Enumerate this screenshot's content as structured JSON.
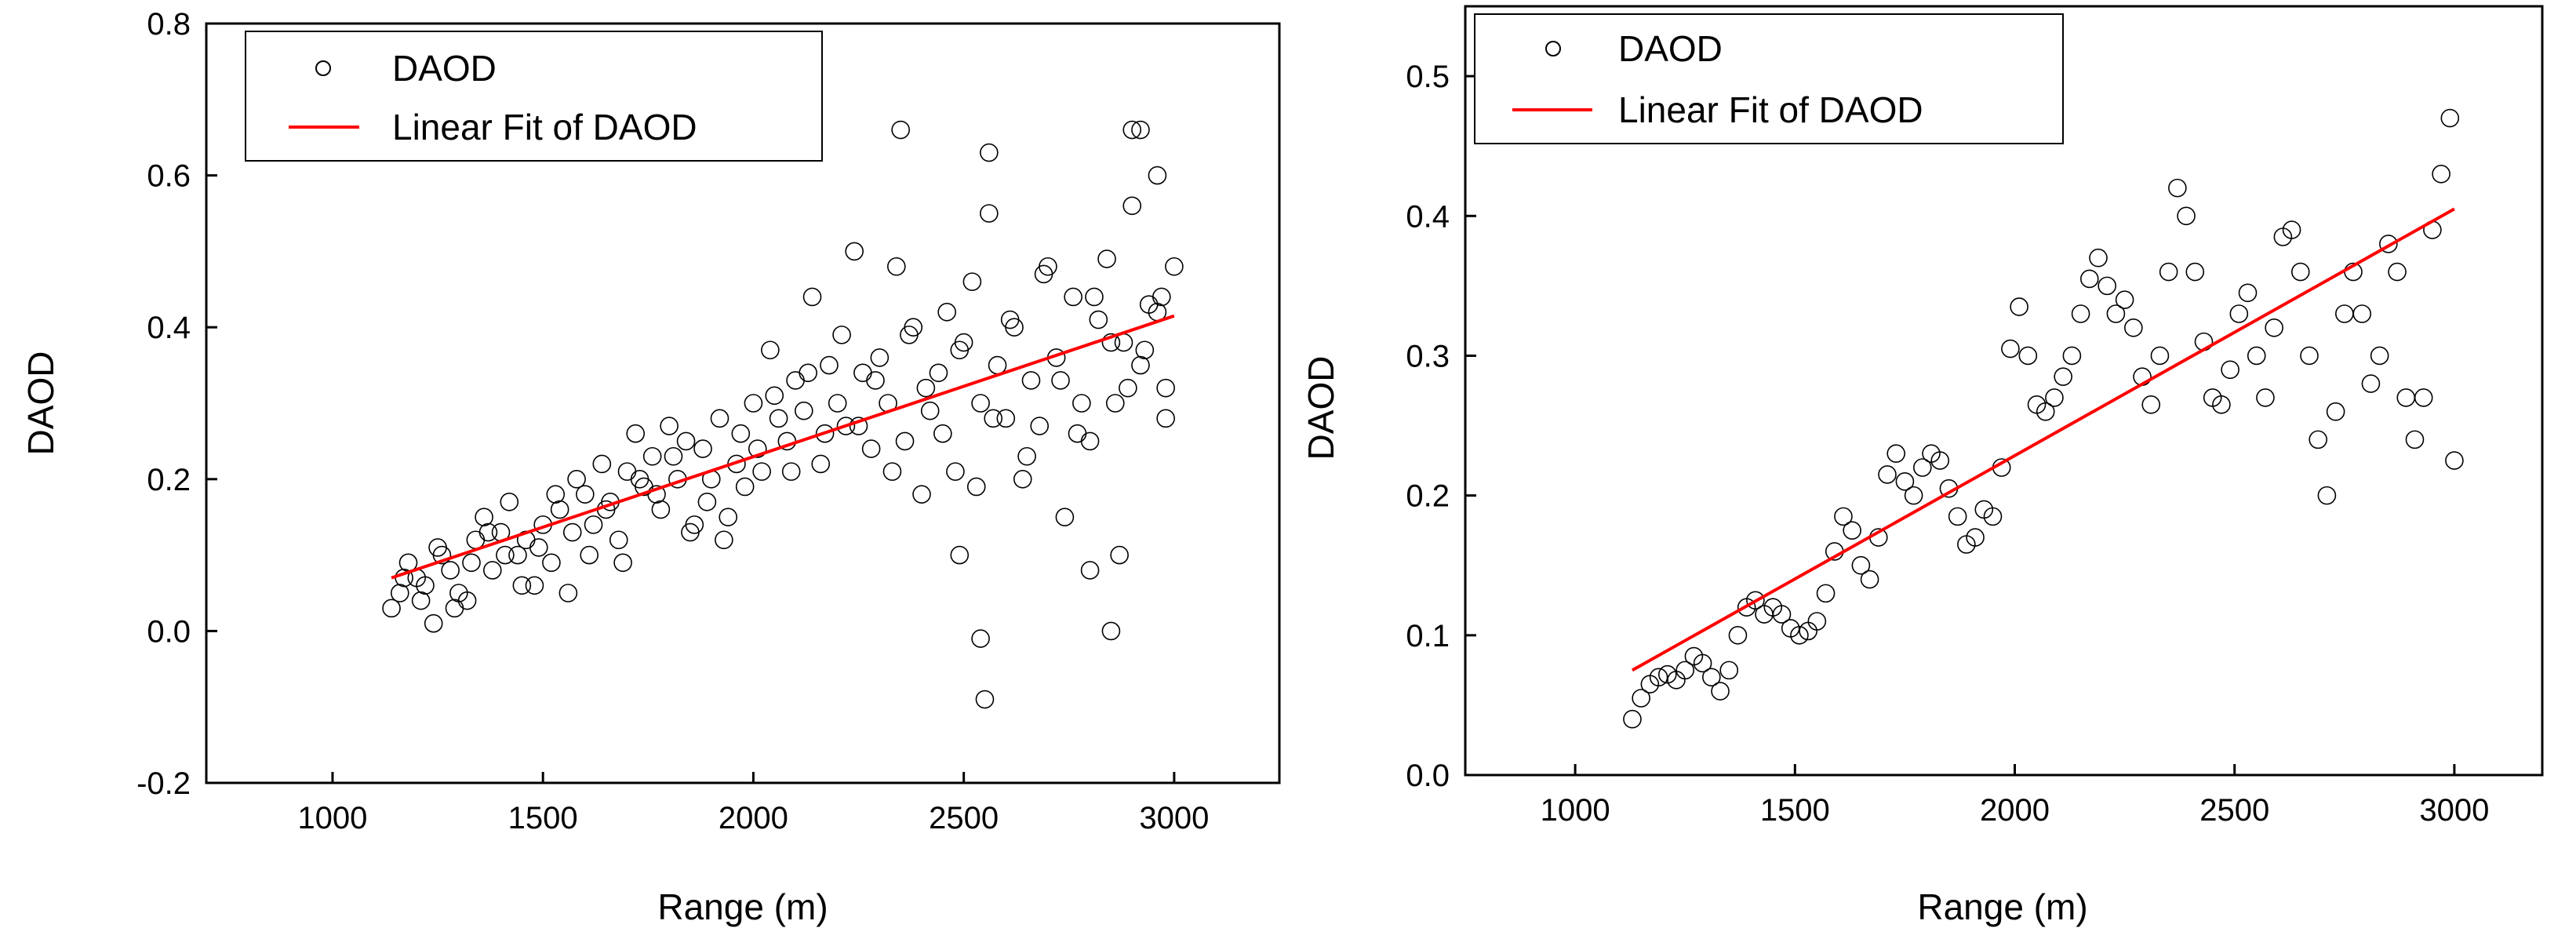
{
  "chart_data": [
    {
      "type": "scatter",
      "title": "",
      "xlabel": "Range (m)",
      "ylabel": "DAOD",
      "xlim": [
        700,
        3250
      ],
      "ylim": [
        -0.2,
        0.8
      ],
      "xticks": [
        1000,
        1500,
        2000,
        2500,
        3000
      ],
      "yticks": [
        -0.2,
        0.0,
        0.2,
        0.4,
        0.6,
        0.8
      ],
      "ytick_labels": [
        "-0.2",
        "0.0",
        "0.2",
        "0.4",
        "0.6",
        "0.8"
      ],
      "legend_position": "top-left",
      "legend": [
        "DAOD",
        "Linear Fit of DAOD"
      ],
      "fit_line": {
        "name": "Linear Fit of DAOD",
        "color": "#ff0000",
        "x": [
          1140,
          3000
        ],
        "y": [
          0.07,
          0.415
        ]
      },
      "series": [
        {
          "name": "DAOD",
          "marker": "open-circle",
          "x": [
            1140,
            1160,
            1180,
            1200,
            1220,
            1240,
            1260,
            1280,
            1300,
            1320,
            1340,
            1360,
            1380,
            1400,
            1420,
            1440,
            1460,
            1480,
            1500,
            1520,
            1540,
            1560,
            1580,
            1600,
            1620,
            1640,
            1660,
            1680,
            1700,
            1720,
            1740,
            1760,
            1780,
            1800,
            1820,
            1840,
            1860,
            1880,
            1900,
            1920,
            1940,
            1960,
            1980,
            2000,
            2020,
            2040,
            2060,
            2080,
            2100,
            2120,
            2140,
            2160,
            2180,
            2200,
            2220,
            2240,
            2260,
            2280,
            2300,
            2320,
            2340,
            2360,
            2380,
            2400,
            2420,
            2440,
            2460,
            2480,
            2500,
            2520,
            2540,
            2560,
            2580,
            2600,
            2620,
            2640,
            2660,
            2680,
            2700,
            2720,
            2740,
            2760,
            2780,
            2800,
            2820,
            2840,
            2860,
            2880,
            2900,
            2920,
            2940,
            2960,
            2980,
            3000,
            1170,
            1210,
            1250,
            1290,
            1330,
            1370,
            1410,
            1450,
            1490,
            1530,
            1570,
            1610,
            1650,
            1690,
            1730,
            1770,
            1810,
            1850,
            1890,
            1930,
            1970,
            2010,
            2050,
            2090,
            2130,
            2170,
            2210,
            2250,
            2290,
            2330,
            2370,
            2410,
            2450,
            2490,
            2530,
            2570,
            2610,
            2650,
            2690,
            2730,
            2770,
            2810,
            2850,
            2890,
            2930,
            2970,
            2350,
            2540,
            2560,
            2550,
            2850,
            2870,
            2490,
            2800,
            2900,
            2920,
            2960,
            2980
          ],
          "y": [
            0.03,
            0.05,
            0.09,
            0.07,
            0.06,
            0.01,
            0.1,
            0.08,
            0.05,
            0.04,
            0.12,
            0.15,
            0.08,
            0.13,
            0.17,
            0.1,
            0.12,
            0.06,
            0.14,
            0.09,
            0.16,
            0.05,
            0.2,
            0.18,
            0.14,
            0.22,
            0.17,
            0.12,
            0.21,
            0.26,
            0.19,
            0.23,
            0.16,
            0.27,
            0.2,
            0.25,
            0.14,
            0.24,
            0.2,
            0.28,
            0.15,
            0.22,
            0.19,
            0.3,
            0.21,
            0.37,
            0.28,
            0.25,
            0.33,
            0.29,
            0.44,
            0.22,
            0.35,
            0.3,
            0.27,
            0.5,
            0.34,
            0.24,
            0.36,
            0.3,
            0.48,
            0.25,
            0.4,
            0.18,
            0.29,
            0.34,
            0.42,
            0.21,
            0.38,
            0.46,
            0.3,
            0.55,
            0.35,
            0.28,
            0.4,
            0.2,
            0.33,
            0.27,
            0.48,
            0.36,
            0.15,
            0.44,
            0.3,
            0.25,
            0.41,
            0.49,
            0.3,
            0.38,
            0.56,
            0.35,
            0.43,
            0.6,
            0.28,
            0.48,
            0.07,
            0.04,
            0.11,
            0.03,
            0.09,
            0.13,
            0.1,
            0.06,
            0.11,
            0.18,
            0.13,
            0.1,
            0.16,
            0.09,
            0.2,
            0.18,
            0.23,
            0.13,
            0.17,
            0.12,
            0.26,
            0.24,
            0.31,
            0.21,
            0.34,
            0.26,
            0.39,
            0.27,
            0.33,
            0.21,
            0.39,
            0.32,
            0.26,
            0.37,
            0.19,
            0.28,
            0.41,
            0.23,
            0.47,
            0.33,
            0.26,
            0.44,
            0.38,
            0.32,
            0.37,
            0.44,
            0.66,
            -0.01,
            0.63,
            -0.09,
            0.0,
            0.1,
            0.1,
            0.08,
            0.66,
            0.66,
            0.42,
            0.32
          ]
        }
      ]
    },
    {
      "type": "scatter",
      "title": "",
      "xlabel": "Range (m)",
      "ylabel": "DAOD",
      "xlim": [
        750,
        3200
      ],
      "ylim": [
        0.0,
        0.55
      ],
      "xticks": [
        1000,
        1500,
        2000,
        2500,
        3000
      ],
      "yticks": [
        0.0,
        0.1,
        0.2,
        0.3,
        0.4,
        0.5
      ],
      "ytick_labels": [
        "0.0",
        "0.1",
        "0.2",
        "0.3",
        "0.4",
        "0.5"
      ],
      "legend_position": "top-left",
      "legend": [
        "DAOD",
        "Linear Fit of DAOD"
      ],
      "fit_line": {
        "name": "Linear Fit of DAOD",
        "color": "#ff0000",
        "x": [
          1130,
          3000
        ],
        "y": [
          0.075,
          0.405
        ]
      },
      "series": [
        {
          "name": "DAOD",
          "marker": "open-circle",
          "x": [
            1130,
            1150,
            1170,
            1190,
            1210,
            1230,
            1250,
            1270,
            1290,
            1310,
            1330,
            1350,
            1370,
            1390,
            1410,
            1430,
            1450,
            1470,
            1490,
            1510,
            1530,
            1550,
            1570,
            1590,
            1610,
            1630,
            1650,
            1670,
            1690,
            1710,
            1730,
            1750,
            1770,
            1790,
            1810,
            1830,
            1850,
            1870,
            1890,
            1910,
            1930,
            1950,
            1970,
            1990,
            2010,
            2030,
            2050,
            2070,
            2090,
            2110,
            2130,
            2150,
            2170,
            2190,
            2210,
            2230,
            2250,
            2270,
            2290,
            2310,
            2330,
            2350,
            2370,
            2390,
            2410,
            2430,
            2450,
            2470,
            2490,
            2510,
            2530,
            2550,
            2570,
            2590,
            2610,
            2630,
            2650,
            2670,
            2690,
            2710,
            2730,
            2750,
            2770,
            2790,
            2810,
            2830,
            2850,
            2870,
            2890,
            2910,
            2930,
            2950,
            2970,
            2990,
            3000
          ],
          "y": [
            0.04,
            0.055,
            0.065,
            0.07,
            0.072,
            0.068,
            0.075,
            0.085,
            0.08,
            0.07,
            0.06,
            0.075,
            0.1,
            0.12,
            0.125,
            0.115,
            0.12,
            0.115,
            0.105,
            0.1,
            0.103,
            0.11,
            0.13,
            0.16,
            0.185,
            0.175,
            0.15,
            0.14,
            0.17,
            0.215,
            0.23,
            0.21,
            0.2,
            0.22,
            0.23,
            0.225,
            0.205,
            0.185,
            0.165,
            0.17,
            0.19,
            0.185,
            0.22,
            0.305,
            0.335,
            0.3,
            0.265,
            0.26,
            0.27,
            0.285,
            0.3,
            0.33,
            0.355,
            0.37,
            0.35,
            0.33,
            0.34,
            0.32,
            0.285,
            0.265,
            0.3,
            0.36,
            0.42,
            0.4,
            0.36,
            0.31,
            0.27,
            0.265,
            0.29,
            0.33,
            0.345,
            0.3,
            0.27,
            0.32,
            0.385,
            0.39,
            0.36,
            0.3,
            0.24,
            0.2,
            0.26,
            0.33,
            0.36,
            0.33,
            0.28,
            0.3,
            0.38,
            0.36,
            0.27,
            0.24,
            0.27,
            0.39,
            0.43,
            0.47,
            0.225
          ]
        }
      ]
    }
  ]
}
